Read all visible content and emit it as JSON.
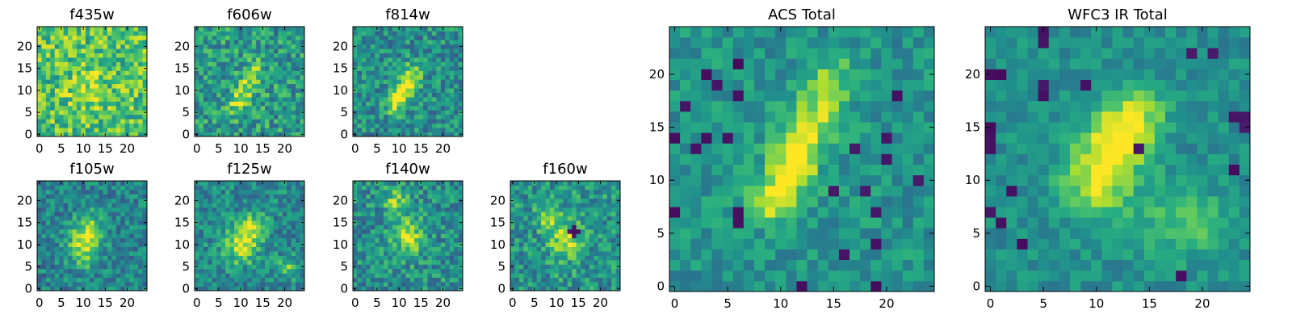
{
  "colormap": "viridis",
  "chart_data": [
    {
      "type": "heatmap",
      "title": "f435w",
      "grid_size": 25,
      "xticks": [
        0,
        5,
        10,
        15,
        20
      ],
      "yticks": [
        0,
        5,
        10,
        15,
        20
      ],
      "xlim": [
        -0.5,
        24.5
      ],
      "ylim": [
        -0.5,
        24.5
      ],
      "base_level": 0.72,
      "noise": 0.24,
      "seed": 11,
      "features": [
        {
          "x": 10,
          "y": 9,
          "amp": 0.15,
          "sx": 2.5,
          "sy": 2.5
        },
        {
          "x": 13,
          "y": 14,
          "amp": 0.1,
          "sx": 2.0,
          "sy": 3.0
        }
      ]
    },
    {
      "type": "heatmap",
      "title": "f606w",
      "grid_size": 25,
      "xticks": [
        0,
        5,
        10,
        15,
        20
      ],
      "yticks": [
        0,
        5,
        10,
        15,
        20
      ],
      "xlim": [
        -0.5,
        24.5
      ],
      "ylim": [
        -0.5,
        24.5
      ],
      "base_level": 0.55,
      "noise": 0.22,
      "seed": 23,
      "features": [
        {
          "x": 9,
          "y": 7,
          "amp": 0.28,
          "sx": 1.5,
          "sy": 1.8
        },
        {
          "x": 11,
          "y": 10,
          "amp": 0.3,
          "sx": 1.5,
          "sy": 2.0
        },
        {
          "x": 13,
          "y": 14,
          "amp": 0.28,
          "sx": 1.5,
          "sy": 2.0
        }
      ]
    },
    {
      "type": "heatmap",
      "title": "f814w",
      "grid_size": 25,
      "xticks": [
        0,
        5,
        10,
        15,
        20
      ],
      "yticks": [
        0,
        5,
        10,
        15,
        20
      ],
      "xlim": [
        -0.5,
        24.5
      ],
      "ylim": [
        -0.5,
        24.5
      ],
      "base_level": 0.5,
      "noise": 0.2,
      "seed": 37,
      "features": [
        {
          "x": 9,
          "y": 7,
          "amp": 0.38,
          "sx": 1.5,
          "sy": 1.8
        },
        {
          "x": 11,
          "y": 10,
          "amp": 0.42,
          "sx": 1.5,
          "sy": 2.0
        },
        {
          "x": 13,
          "y": 13,
          "amp": 0.38,
          "sx": 1.5,
          "sy": 2.2
        }
      ]
    },
    {
      "type": "heatmap",
      "title": "f105w",
      "grid_size": 25,
      "xticks": [
        0,
        5,
        10,
        15,
        20
      ],
      "yticks": [
        0,
        5,
        10,
        15,
        20
      ],
      "xlim": [
        -0.5,
        24.5
      ],
      "ylim": [
        -0.5,
        24.5
      ],
      "base_level": 0.45,
      "noise": 0.18,
      "seed": 41,
      "features": [
        {
          "x": 10,
          "y": 10,
          "amp": 0.42,
          "sx": 2.5,
          "sy": 3.5
        },
        {
          "x": 12,
          "y": 14,
          "amp": 0.25,
          "sx": 2.0,
          "sy": 2.5
        }
      ]
    },
    {
      "type": "heatmap",
      "title": "f125w",
      "grid_size": 25,
      "xticks": [
        0,
        5,
        10,
        15,
        20
      ],
      "yticks": [
        0,
        5,
        10,
        15,
        20
      ],
      "xlim": [
        -0.5,
        24.5
      ],
      "ylim": [
        -0.5,
        24.5
      ],
      "base_level": 0.48,
      "noise": 0.18,
      "seed": 53,
      "features": [
        {
          "x": 10,
          "y": 10,
          "amp": 0.45,
          "sx": 2.5,
          "sy": 3.0
        },
        {
          "x": 13,
          "y": 14,
          "amp": 0.3,
          "sx": 2.0,
          "sy": 2.5
        },
        {
          "x": 21,
          "y": 5,
          "amp": 0.3,
          "sx": 1.5,
          "sy": 1.5
        }
      ]
    },
    {
      "type": "heatmap",
      "title": "f140w",
      "grid_size": 25,
      "xticks": [
        0,
        5,
        10,
        15,
        20
      ],
      "yticks": [
        0,
        5,
        10,
        15,
        20
      ],
      "xlim": [
        -0.5,
        24.5
      ],
      "ylim": [
        -0.5,
        24.5
      ],
      "base_level": 0.5,
      "noise": 0.2,
      "seed": 67,
      "features": [
        {
          "x": 12,
          "y": 12,
          "amp": 0.4,
          "sx": 2.5,
          "sy": 3.0
        },
        {
          "x": 9,
          "y": 20,
          "amp": 0.3,
          "sx": 2.0,
          "sy": 2.0
        }
      ]
    },
    {
      "type": "heatmap",
      "title": "f160w",
      "grid_size": 25,
      "xticks": [
        0,
        5,
        10,
        15,
        20
      ],
      "yticks": [
        0,
        5,
        10,
        15,
        20
      ],
      "xlim": [
        -0.5,
        24.5
      ],
      "ylim": [
        -0.5,
        24.5
      ],
      "base_level": 0.52,
      "noise": 0.2,
      "seed": 79,
      "features": [
        {
          "x": 12,
          "y": 11,
          "amp": 0.4,
          "sx": 2.5,
          "sy": 3.0
        },
        {
          "x": 8,
          "y": 16,
          "amp": 0.25,
          "sx": 2.0,
          "sy": 2.0
        }
      ],
      "dark_pixels": [
        [
          14,
          13
        ],
        [
          13,
          13
        ],
        [
          15,
          13
        ],
        [
          14,
          12
        ],
        [
          14,
          14
        ]
      ]
    },
    {
      "type": "heatmap",
      "title": "ACS Total",
      "grid_size": 25,
      "xticks": [
        0,
        5,
        10,
        15,
        20
      ],
      "yticks": [
        0,
        5,
        10,
        15,
        20
      ],
      "xlim": [
        -0.5,
        24.5
      ],
      "ylim": [
        -0.5,
        24.5
      ],
      "base_level": 0.52,
      "noise": 0.13,
      "seed": 97,
      "features": [
        {
          "x": 9,
          "y": 8,
          "amp": 0.42,
          "sx": 1.4,
          "sy": 1.4
        },
        {
          "x": 11,
          "y": 11,
          "amp": 0.45,
          "sx": 1.5,
          "sy": 1.8
        },
        {
          "x": 12,
          "y": 14,
          "amp": 0.35,
          "sx": 1.5,
          "sy": 2.0
        },
        {
          "x": 14,
          "y": 17,
          "amp": 0.3,
          "sx": 1.5,
          "sy": 2.0
        },
        {
          "x": 15,
          "y": 20,
          "amp": 0.2,
          "sx": 1.5,
          "sy": 1.5
        }
      ],
      "dark_pixels": [
        [
          1,
          17
        ],
        [
          0,
          14
        ],
        [
          2,
          13
        ],
        [
          3,
          14
        ],
        [
          6,
          18
        ],
        [
          5,
          14
        ],
        [
          0,
          7
        ],
        [
          6,
          7
        ],
        [
          6,
          6
        ],
        [
          19,
          7
        ],
        [
          18,
          9
        ],
        [
          20,
          12
        ],
        [
          17,
          13
        ],
        [
          19,
          4
        ],
        [
          19,
          0
        ],
        [
          6,
          21
        ],
        [
          4,
          19
        ],
        [
          3,
          20
        ],
        [
          15,
          9
        ],
        [
          20,
          14
        ],
        [
          12,
          0
        ],
        [
          16,
          3
        ],
        [
          23,
          10
        ],
        [
          21,
          18
        ]
      ]
    },
    {
      "type": "heatmap",
      "title": "WFC3 IR Total",
      "grid_size": 25,
      "xticks": [
        0,
        5,
        10,
        15,
        20
      ],
      "yticks": [
        0,
        5,
        10,
        15,
        20
      ],
      "xlim": [
        -0.5,
        24.5
      ],
      "ylim": [
        -0.5,
        24.5
      ],
      "base_level": 0.5,
      "noise": 0.11,
      "seed": 113,
      "features": [
        {
          "x": 10,
          "y": 10,
          "amp": 0.42,
          "sx": 2.2,
          "sy": 2.6
        },
        {
          "x": 12,
          "y": 14,
          "amp": 0.4,
          "sx": 2.0,
          "sy": 2.4
        },
        {
          "x": 14,
          "y": 16,
          "amp": 0.3,
          "sx": 1.8,
          "sy": 2.0
        },
        {
          "x": 18,
          "y": 6,
          "amp": 0.22,
          "sx": 3.0,
          "sy": 2.5
        }
      ],
      "dark_pixels": [
        [
          5,
          24
        ],
        [
          5,
          23
        ],
        [
          0,
          20
        ],
        [
          1,
          20
        ],
        [
          5,
          19
        ],
        [
          5,
          18
        ],
        [
          0,
          15
        ],
        [
          0,
          14
        ],
        [
          0,
          13
        ],
        [
          14,
          13
        ],
        [
          1,
          6
        ],
        [
          0,
          7
        ],
        [
          24,
          15
        ],
        [
          23,
          16
        ],
        [
          24,
          16
        ],
        [
          18,
          1
        ],
        [
          3,
          4
        ],
        [
          9,
          19
        ],
        [
          21,
          22
        ],
        [
          19,
          22
        ],
        [
          23,
          11
        ],
        [
          2,
          9
        ]
      ]
    }
  ]
}
